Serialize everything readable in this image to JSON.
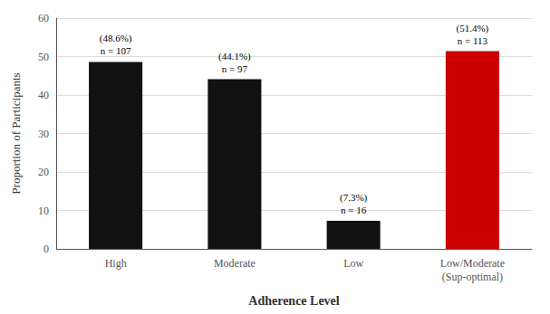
{
  "chart_data": {
    "type": "bar",
    "xlabel": "Adherence Level",
    "ylabel": "Proportion of Participants",
    "categories": [
      "High",
      "Moderate",
      "Low",
      "Low/Moderate\n(Sup-optimal)"
    ],
    "values": [
      48.6,
      44.1,
      7.3,
      51.4
    ],
    "colors": [
      "#111111",
      "#111111",
      "#111111",
      "#cc0000"
    ],
    "data_labels": true,
    "value_labels": [
      "(48.6%)",
      "(44.1%)",
      "(7.3%)",
      "(51.4%)"
    ],
    "annotations": [
      "n = 107",
      "n = 97",
      "n = 16",
      "n = 113"
    ],
    "ylim": [
      0,
      60
    ],
    "yticks": [
      0,
      10,
      20,
      30,
      40,
      50,
      60
    ],
    "grid": true
  }
}
